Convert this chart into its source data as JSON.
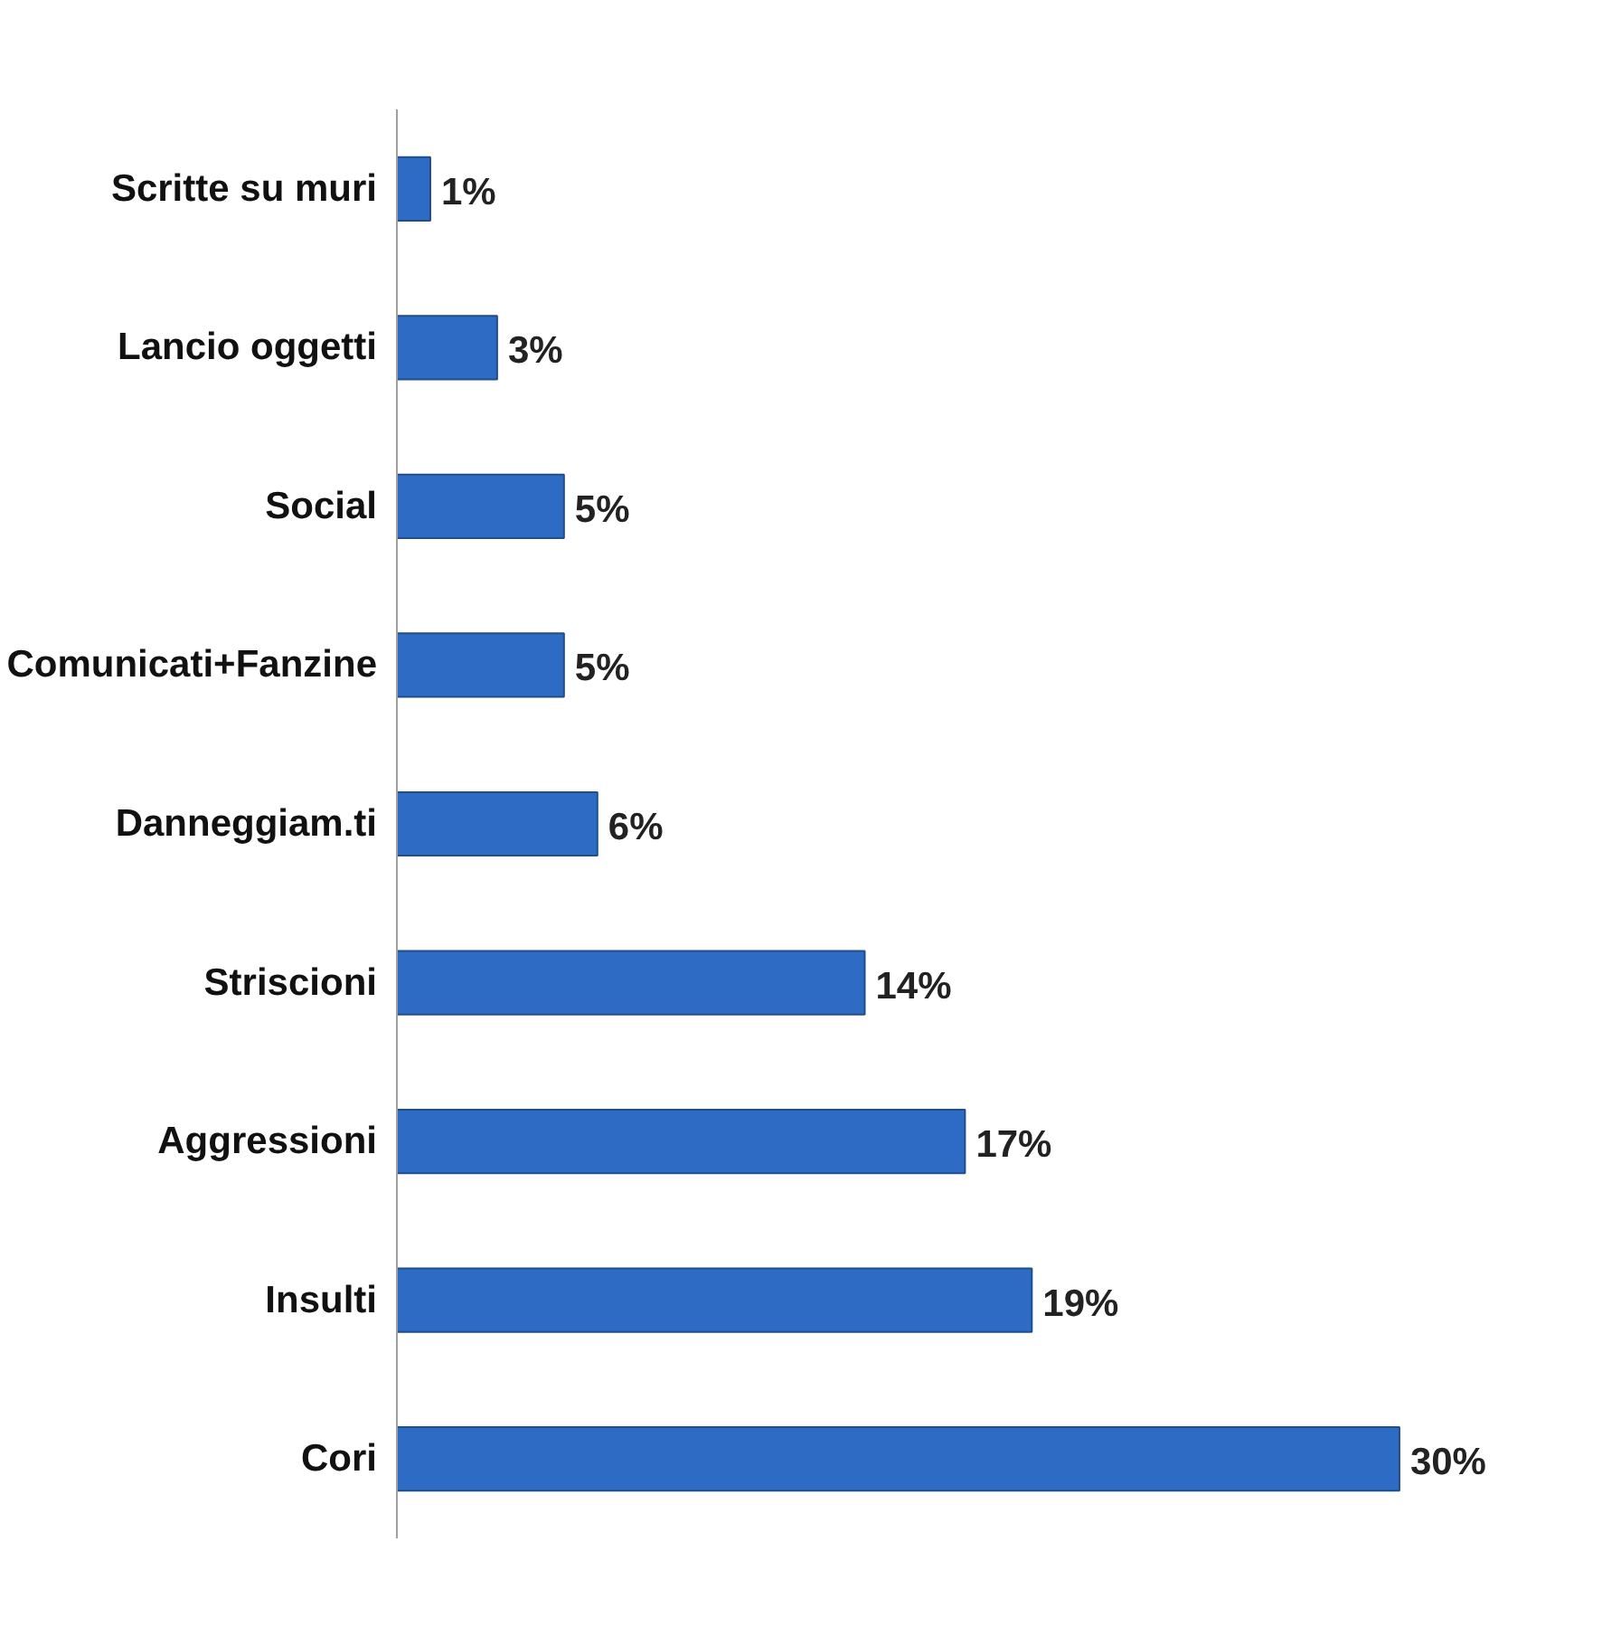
{
  "chart_data": {
    "type": "bar",
    "orientation": "horizontal",
    "categories": [
      "Scritte su muri",
      "Lancio oggetti",
      "Social",
      "Comunicati+Fanzine",
      "Danneggiam.ti",
      "Striscioni",
      "Aggressioni",
      "Insulti",
      "Cori"
    ],
    "values": [
      1,
      3,
      5,
      5,
      6,
      14,
      17,
      19,
      30
    ],
    "value_labels": [
      "1%",
      "3%",
      "5%",
      "5%",
      "6%",
      "14%",
      "17%",
      "19%",
      "30%"
    ],
    "color": "#2e6bc4"
  }
}
